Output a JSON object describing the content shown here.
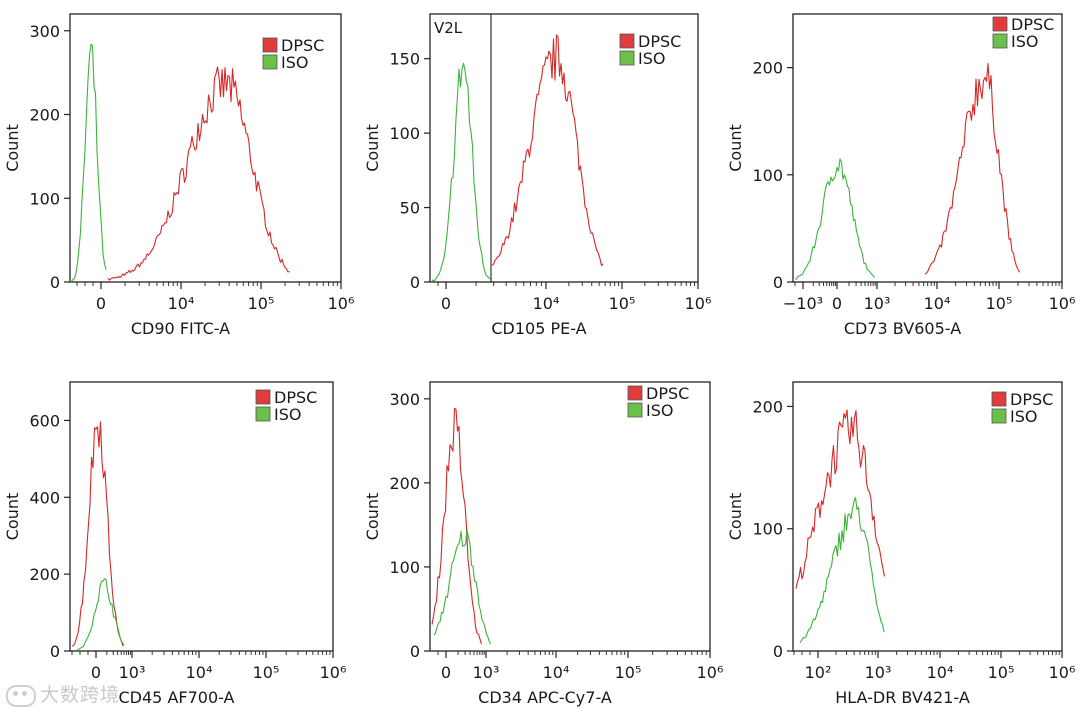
{
  "colors": {
    "dpsc": "#d62728",
    "iso": "#3cb43c",
    "dpsc_swatch": "#e03c3c",
    "iso_swatch": "#6cc04a",
    "axis": "#222222",
    "text": "#1a1a1a"
  },
  "watermark": {
    "text": "大数跨境"
  },
  "chart_data": [
    {
      "type": "histogram",
      "panel": "cd90",
      "xlabel": "CD90 FITC-A",
      "ylabel": "Count",
      "ylim": [
        0,
        320
      ],
      "yticks": [
        "0",
        "100",
        "200",
        "300"
      ],
      "xticks": [
        "0",
        "10⁴",
        "10⁵",
        "10⁶"
      ],
      "legend": [
        "DPSC",
        "ISO"
      ],
      "series": [
        {
          "name": "DPSC",
          "peaks": [
            {
              "center": "10^4.5",
              "count": 235
            }
          ]
        },
        {
          "name": "ISO",
          "peaks": [
            {
              "center": "below 0",
              "count": 268
            }
          ]
        }
      ]
    },
    {
      "type": "histogram",
      "panel": "cd105",
      "xlabel": "CD105 PE-A",
      "ylabel": "Count",
      "ylim": [
        0,
        180
      ],
      "yticks": [
        "0",
        "50",
        "100",
        "150"
      ],
      "xticks": [
        "0",
        "10⁴",
        "10⁵",
        "10⁶"
      ],
      "legend": [
        "DPSC",
        "ISO"
      ],
      "gate_label": "V2L",
      "series": [
        {
          "name": "DPSC",
          "peaks": [
            {
              "center": "10^4.2",
              "count": 150
            }
          ]
        },
        {
          "name": "ISO",
          "peaks": [
            {
              "center": "near 0",
              "count": 145
            }
          ]
        }
      ]
    },
    {
      "type": "histogram",
      "panel": "cd73",
      "xlabel": "CD73 BV605-A",
      "ylabel": "Count",
      "ylim": [
        0,
        250
      ],
      "yticks": [
        "0",
        "100",
        "200"
      ],
      "xticks": [
        "−10³",
        "0",
        "10³",
        "10⁴",
        "10⁵",
        "10⁶"
      ],
      "legend": [
        "DPSC",
        "ISO"
      ],
      "series": [
        {
          "name": "DPSC",
          "peaks": [
            {
              "center": "10^4.75",
              "count": 190
            }
          ]
        },
        {
          "name": "ISO",
          "peaks": [
            {
              "center": "0",
              "count": 110
            }
          ]
        }
      ]
    },
    {
      "type": "histogram",
      "panel": "cd45",
      "xlabel": "CD45 AF700-A",
      "ylabel": "Count",
      "ylim": [
        0,
        700
      ],
      "yticks": [
        "0",
        "200",
        "400",
        "600"
      ],
      "xticks": [
        "0",
        "10³",
        "10⁴",
        "10⁵",
        "10⁶"
      ],
      "legend": [
        "DPSC",
        "ISO"
      ],
      "series": [
        {
          "name": "DPSC",
          "peaks": [
            {
              "center": "0",
              "count": 600
            }
          ]
        },
        {
          "name": "ISO",
          "peaks": [
            {
              "center": "0",
              "count": 175
            }
          ]
        }
      ]
    },
    {
      "type": "histogram",
      "panel": "cd34",
      "xlabel": "CD34 APC-Cy7-A",
      "ylabel": "Count",
      "ylim": [
        0,
        320
      ],
      "yticks": [
        "0",
        "100",
        "200",
        "300"
      ],
      "xticks": [
        "0",
        "10³",
        "10⁴",
        "10⁵",
        "10⁶"
      ],
      "legend": [
        "DPSC",
        "ISO"
      ],
      "series": [
        {
          "name": "DPSC",
          "peaks": [
            {
              "center": "near 0",
              "count": 265
            }
          ]
        },
        {
          "name": "ISO",
          "peaks": [
            {
              "center": "near 10³",
              "count": 135
            }
          ]
        }
      ]
    },
    {
      "type": "histogram",
      "panel": "hladr",
      "xlabel": "HLA-DR BV421-A",
      "ylabel": "Count",
      "ylim": [
        0,
        220
      ],
      "yticks": [
        "0",
        "100",
        "200"
      ],
      "xticks": [
        "10²",
        "10³",
        "10⁴",
        "10⁵",
        "10⁶"
      ],
      "legend": [
        "DPSC",
        "ISO"
      ],
      "series": [
        {
          "name": "DPSC",
          "peaks": [
            {
              "center": "10^2.6",
              "count": 180
            }
          ]
        },
        {
          "name": "ISO",
          "peaks": [
            {
              "center": "10^2.6",
              "count": 115
            }
          ]
        }
      ]
    }
  ]
}
